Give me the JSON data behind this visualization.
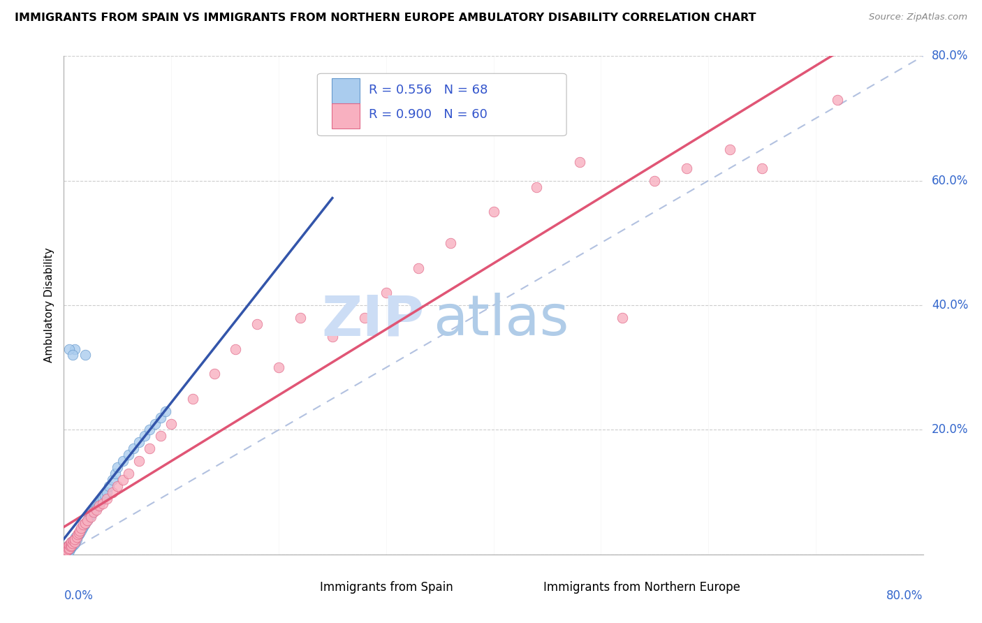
{
  "title": "IMMIGRANTS FROM SPAIN VS IMMIGRANTS FROM NORTHERN EUROPE AMBULATORY DISABILITY CORRELATION CHART",
  "source": "Source: ZipAtlas.com",
  "ylabel": "Ambulatory Disability",
  "xlim": [
    0,
    0.8
  ],
  "ylim": [
    0,
    0.8
  ],
  "series1_label": "Immigrants from Spain",
  "series1_color": "#aaccee",
  "series1_edge_color": "#6699cc",
  "series1_R": 0.556,
  "series1_N": 68,
  "series1_line_color": "#3355aa",
  "series2_label": "Immigrants from Northern Europe",
  "series2_color": "#f8b0c0",
  "series2_edge_color": "#e06888",
  "series2_R": 0.9,
  "series2_N": 60,
  "series2_line_color": "#e05575",
  "legend_text_color": "#3355cc",
  "watermark_zip_color": "#ccddf5",
  "watermark_atlas_color": "#b0cce8",
  "background_color": "#ffffff",
  "grid_color": "#cccccc",
  "title_fontsize": 11.5,
  "ytick_color": "#3366cc",
  "spain_x": [
    0.001,
    0.001,
    0.001,
    0.002,
    0.002,
    0.002,
    0.002,
    0.003,
    0.003,
    0.003,
    0.003,
    0.004,
    0.004,
    0.004,
    0.005,
    0.005,
    0.005,
    0.005,
    0.006,
    0.006,
    0.006,
    0.007,
    0.007,
    0.007,
    0.008,
    0.008,
    0.009,
    0.009,
    0.01,
    0.01,
    0.011,
    0.011,
    0.012,
    0.013,
    0.014,
    0.015,
    0.016,
    0.017,
    0.018,
    0.019,
    0.02,
    0.022,
    0.024,
    0.026,
    0.028,
    0.03,
    0.032,
    0.034,
    0.036,
    0.038,
    0.04,
    0.042,
    0.045,
    0.048,
    0.05,
    0.055,
    0.06,
    0.065,
    0.07,
    0.075,
    0.08,
    0.085,
    0.09,
    0.095,
    0.01,
    0.02,
    0.005,
    0.008
  ],
  "spain_y": [
    0.003,
    0.005,
    0.008,
    0.004,
    0.007,
    0.006,
    0.009,
    0.005,
    0.008,
    0.01,
    0.012,
    0.007,
    0.01,
    0.014,
    0.006,
    0.009,
    0.012,
    0.015,
    0.01,
    0.013,
    0.016,
    0.012,
    0.016,
    0.02,
    0.014,
    0.018,
    0.016,
    0.022,
    0.018,
    0.024,
    0.022,
    0.028,
    0.025,
    0.03,
    0.032,
    0.035,
    0.038,
    0.042,
    0.045,
    0.048,
    0.05,
    0.055,
    0.06,
    0.065,
    0.07,
    0.075,
    0.08,
    0.085,
    0.09,
    0.095,
    0.1,
    0.11,
    0.12,
    0.13,
    0.14,
    0.15,
    0.16,
    0.17,
    0.18,
    0.19,
    0.2,
    0.21,
    0.22,
    0.23,
    0.33,
    0.32,
    0.33,
    0.32
  ],
  "northern_x": [
    0.001,
    0.001,
    0.002,
    0.002,
    0.003,
    0.003,
    0.004,
    0.004,
    0.005,
    0.005,
    0.006,
    0.006,
    0.007,
    0.007,
    0.008,
    0.009,
    0.01,
    0.01,
    0.012,
    0.013,
    0.014,
    0.015,
    0.016,
    0.018,
    0.02,
    0.022,
    0.025,
    0.028,
    0.03,
    0.033,
    0.036,
    0.04,
    0.045,
    0.05,
    0.055,
    0.06,
    0.07,
    0.08,
    0.09,
    0.1,
    0.12,
    0.14,
    0.16,
    0.18,
    0.2,
    0.22,
    0.25,
    0.28,
    0.3,
    0.33,
    0.36,
    0.4,
    0.44,
    0.48,
    0.52,
    0.55,
    0.58,
    0.62,
    0.65,
    0.72
  ],
  "northern_y": [
    0.003,
    0.006,
    0.005,
    0.009,
    0.007,
    0.012,
    0.009,
    0.014,
    0.01,
    0.016,
    0.013,
    0.018,
    0.015,
    0.02,
    0.018,
    0.022,
    0.02,
    0.025,
    0.028,
    0.032,
    0.035,
    0.038,
    0.042,
    0.048,
    0.05,
    0.055,
    0.06,
    0.068,
    0.072,
    0.078,
    0.082,
    0.09,
    0.1,
    0.11,
    0.12,
    0.13,
    0.15,
    0.17,
    0.19,
    0.21,
    0.25,
    0.29,
    0.33,
    0.37,
    0.3,
    0.38,
    0.35,
    0.38,
    0.42,
    0.46,
    0.5,
    0.55,
    0.59,
    0.63,
    0.38,
    0.6,
    0.62,
    0.65,
    0.62,
    0.73
  ]
}
